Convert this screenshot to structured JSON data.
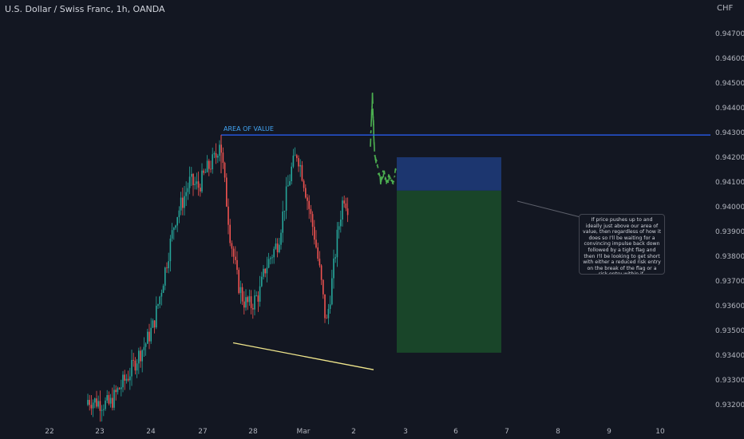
{
  "header": {
    "title": "U.S. Dollar / Swiss Franc, 1h, OANDA",
    "currency": "CHF"
  },
  "colors": {
    "background": "#131722",
    "candle_up": "#26a69a",
    "candle_down": "#ef5350",
    "projection": "#4caf50",
    "area_of_value_line": "#2962ff",
    "trendline": "#f0e68c",
    "stop_zone": "#1e3a78",
    "target_zone": "#1b4a2a",
    "axis_text": "#b2b5be"
  },
  "chart_data": {
    "type": "candlestick",
    "symbol": "U.S. Dollar / Swiss Franc",
    "interval": "1h",
    "source": "OANDA",
    "ylim": [
      0.9318,
      0.9475
    ],
    "y_ticks": [
      0.947,
      0.946,
      0.945,
      0.944,
      0.943,
      0.942,
      0.941,
      0.94,
      0.939,
      0.938,
      0.937,
      0.936,
      0.935,
      0.934,
      0.933,
      0.932
    ],
    "y_tick_labels": [
      "0.94700",
      "0.94600",
      "0.94500",
      "0.94400",
      "0.94300",
      "0.94200",
      "0.94100",
      "0.94000",
      "0.93900",
      "0.93800",
      "0.93700",
      "0.93600",
      "0.93500",
      "0.93400",
      "0.93300",
      "0.93200"
    ],
    "x_ticks": [
      "22",
      "23",
      "24",
      "27",
      "28",
      "Mar",
      "2",
      "3",
      "6",
      "7",
      "8",
      "9",
      "10"
    ],
    "price_path": [
      [
        0.0,
        0.9322
      ],
      [
        1.5,
        0.932
      ],
      [
        2.1,
        0.9326
      ],
      [
        2.8,
        0.9332
      ],
      [
        3.4,
        0.9339
      ],
      [
        4.0,
        0.9345
      ],
      [
        4.5,
        0.9352
      ],
      [
        5.0,
        0.9365
      ],
      [
        5.5,
        0.938
      ],
      [
        6.0,
        0.9395
      ],
      [
        6.5,
        0.9402
      ],
      [
        7.0,
        0.941
      ],
      [
        7.6,
        0.9408
      ],
      [
        8.2,
        0.9415
      ],
      [
        8.8,
        0.942
      ],
      [
        9.1,
        0.9428
      ],
      [
        9.4,
        0.941
      ],
      [
        9.8,
        0.9388
      ],
      [
        10.3,
        0.937
      ],
      [
        10.7,
        0.9362
      ],
      [
        11.2,
        0.936
      ],
      [
        11.8,
        0.9365
      ],
      [
        12.2,
        0.9375
      ],
      [
        12.6,
        0.938
      ],
      [
        13.1,
        0.9386
      ],
      [
        13.5,
        0.94
      ],
      [
        14.0,
        0.9415
      ],
      [
        14.4,
        0.9422
      ],
      [
        14.8,
        0.9412
      ],
      [
        15.2,
        0.94
      ],
      [
        15.6,
        0.9388
      ],
      [
        16.0,
        0.9372
      ],
      [
        16.4,
        0.9352
      ],
      [
        16.8,
        0.937
      ],
      [
        17.2,
        0.939
      ],
      [
        17.6,
        0.9405
      ],
      [
        17.9,
        0.94
      ]
    ],
    "projection_path": [
      [
        18.3,
        0.9425
      ],
      [
        18.5,
        0.9445
      ],
      [
        18.7,
        0.9422
      ],
      [
        19.0,
        0.9416
      ],
      [
        19.3,
        0.941
      ],
      [
        19.6,
        0.9414
      ],
      [
        19.9,
        0.9409
      ],
      [
        20.2,
        0.9413
      ],
      [
        20.5,
        0.941
      ],
      [
        20.8,
        0.9415
      ]
    ],
    "annotations": {
      "area_of_value": {
        "label": "AREA OF VALUE",
        "price": 0.9429
      },
      "trendline": {
        "start_price": 0.9345,
        "end_price": 0.9338
      },
      "stop_zone": {
        "top": 0.942,
        "bottom": 0.94065
      },
      "target_zone": {
        "top": 0.94065,
        "bottom": 0.9341
      },
      "note": "If price pushes up to and ideally just above our area of value, then regardless of how it does so I'll be waiting for a convincing impulse back down followed by a tight flag and then I'll be looking to get short with either a reduced risk entry on the break of the flag or a risk entry within it."
    }
  }
}
